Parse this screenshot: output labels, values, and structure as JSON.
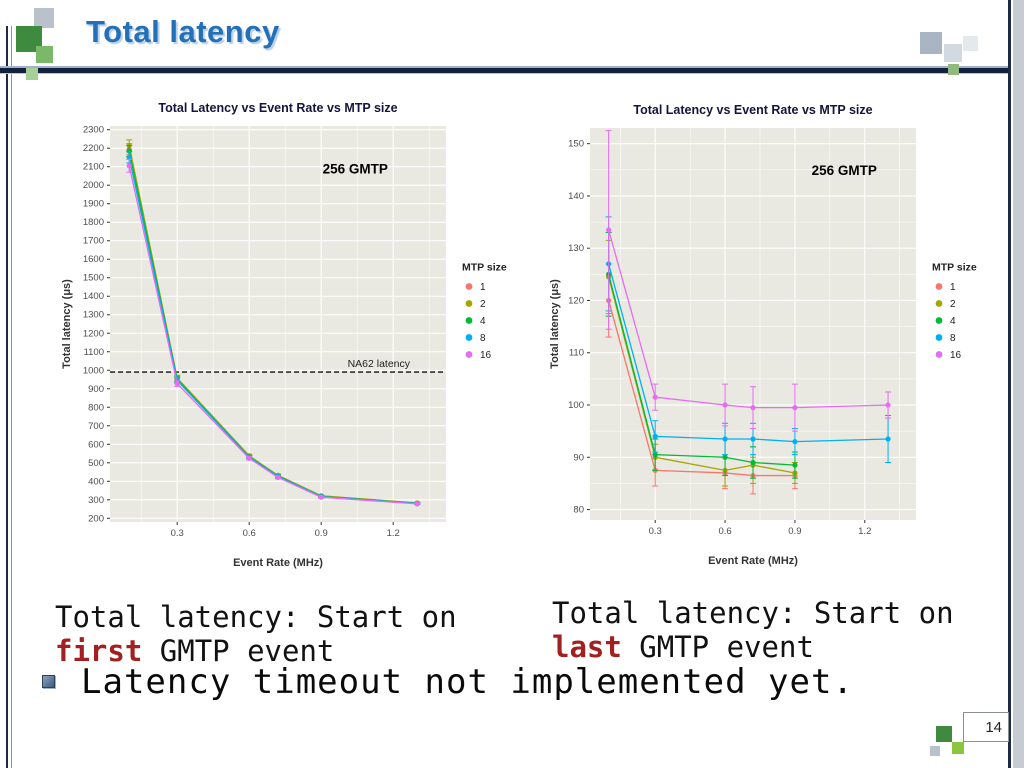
{
  "slide": {
    "title": "Total latency",
    "page_number": "14"
  },
  "captions": {
    "left": {
      "line1": "Total latency: Start on",
      "keyword": "first",
      "line2_rest": " GMTP event"
    },
    "right": {
      "line1": "Total latency: Start on",
      "keyword": "last",
      "line2_rest": " GMTP event"
    }
  },
  "bullet": {
    "text": "Latency timeout not implemented yet."
  },
  "colors": {
    "title_blue": "#2470B8",
    "keyword_red": "#A32020",
    "panel_bg": "#E9E8E1",
    "header_dark": "#15213C"
  },
  "chart_data": [
    {
      "type": "line",
      "title": "Total Latency vs Event Rate vs MTP size",
      "xlabel": "Event Rate (MHz)",
      "ylabel": "Total latency (μs)",
      "annotation": "256 GMTP",
      "annotation_pos": [
        0.73,
        0.12
      ],
      "legend_title": "MTP size",
      "legend_position": "right",
      "grid": true,
      "x": [
        0.1,
        0.3,
        0.6,
        0.72,
        0.9,
        1.3
      ],
      "xlim": [
        0.02,
        1.42
      ],
      "xticks": [
        0.3,
        0.6,
        0.9,
        1.2
      ],
      "xminor": [
        0.15,
        0.45,
        0.75,
        1.05,
        1.35
      ],
      "ylim": [
        180,
        2320
      ],
      "yticks": [
        200,
        300,
        400,
        500,
        600,
        700,
        800,
        900,
        1000,
        1100,
        1200,
        1300,
        1400,
        1500,
        1600,
        1700,
        1800,
        1900,
        2000,
        2100,
        2200,
        2300
      ],
      "ref_line": {
        "y": 990,
        "label": "NA62 latency",
        "label_pos": 0.8
      },
      "series": [
        {
          "name": "1",
          "color": "#F8766D",
          "values": [
            2195,
            955,
            535,
            430,
            320,
            282
          ],
          "err": [
            30,
            15,
            8,
            7,
            5,
            4
          ]
        },
        {
          "name": "2",
          "color": "#A3A500",
          "values": [
            2215,
            958,
            538,
            432,
            322,
            283
          ],
          "err": [
            30,
            15,
            8,
            7,
            5,
            4
          ]
        },
        {
          "name": "4",
          "color": "#00BA38",
          "values": [
            2185,
            950,
            532,
            428,
            318,
            281
          ],
          "err": [
            30,
            15,
            8,
            7,
            5,
            4
          ]
        },
        {
          "name": "8",
          "color": "#00B0F6",
          "values": [
            2150,
            945,
            530,
            426,
            317,
            280
          ],
          "err": [
            30,
            15,
            8,
            7,
            5,
            4
          ]
        },
        {
          "name": "16",
          "color": "#E76BF3",
          "values": [
            2105,
            928,
            524,
            421,
            314,
            278
          ],
          "err": [
            35,
            15,
            8,
            7,
            5,
            4
          ]
        }
      ]
    },
    {
      "type": "line",
      "title": "Total Latency vs Event Rate vs MTP size",
      "xlabel": "Event Rate (MHz)",
      "ylabel": "Total latency (μs)",
      "annotation": "256 GMTP",
      "annotation_pos": [
        0.78,
        0.12
      ],
      "legend_title": "MTP size",
      "legend_position": "right",
      "grid": true,
      "x": [
        0.1,
        0.3,
        0.6,
        0.72,
        0.9,
        1.3
      ],
      "xlim": [
        0.02,
        1.42
      ],
      "xticks": [
        0.3,
        0.6,
        0.9,
        1.2
      ],
      "xminor": [
        0.15,
        0.45,
        0.75,
        1.05,
        1.35
      ],
      "ylim": [
        78,
        153
      ],
      "yticks": [
        80,
        90,
        100,
        110,
        120,
        130,
        140,
        150
      ],
      "yminor": [
        85,
        95,
        105,
        115,
        125,
        135,
        145
      ],
      "series": [
        {
          "name": "1",
          "color": "#F8766D",
          "values": [
            120,
            87.5,
            87,
            86.5,
            86.5,
            null
          ],
          "err": [
            7,
            3,
            3,
            3.5,
            2.5,
            null
          ]
        },
        {
          "name": "2",
          "color": "#A3A500",
          "values": [
            124.5,
            90,
            87.5,
            88.5,
            87,
            null
          ],
          "err": [
            7,
            2.5,
            3,
            3.5,
            2,
            null
          ]
        },
        {
          "name": "4",
          "color": "#00BA38",
          "values": [
            125,
            90.5,
            90,
            89,
            88.5,
            null
          ],
          "err": [
            8,
            3,
            3.5,
            3,
            2.5,
            null
          ]
        },
        {
          "name": "8",
          "color": "#00B0F6",
          "values": [
            127,
            94,
            93.5,
            93.5,
            93,
            93.5
          ],
          "err": [
            9,
            3,
            3,
            3,
            2.5,
            4.5
          ]
        },
        {
          "name": "16",
          "color": "#E76BF3",
          "values": [
            133.5,
            101.5,
            100,
            99.5,
            99.5,
            100
          ],
          "err": [
            19,
            2.5,
            4,
            4,
            4.5,
            2.5
          ]
        }
      ]
    }
  ]
}
